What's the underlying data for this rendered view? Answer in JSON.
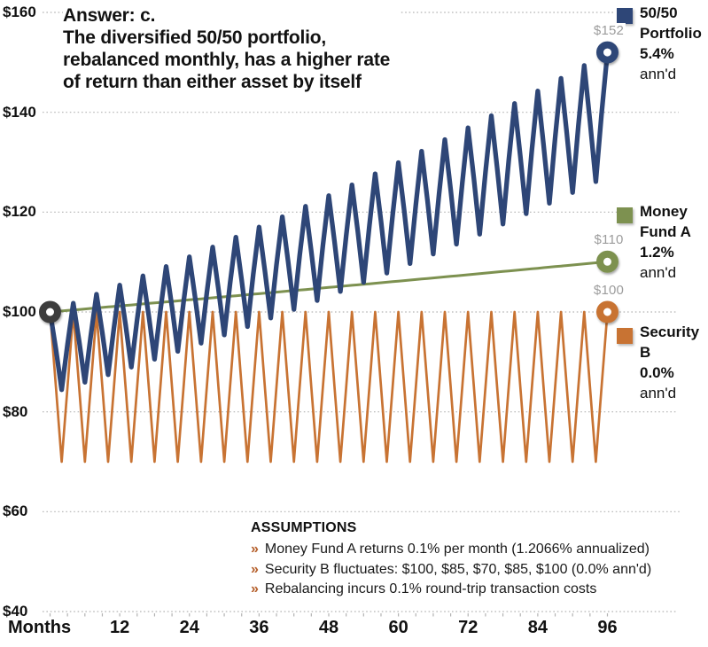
{
  "title": "Answer: c.\nThe diversified 50/50 portfolio,\nrebalanced monthly, has a higher rate\nof return than either asset by itself",
  "axes": {
    "x_title": "Months",
    "x_ticks": [
      12,
      24,
      36,
      48,
      60,
      72,
      84,
      96
    ],
    "y_ticks": [
      {
        "value": 160,
        "label": "$160"
      },
      {
        "value": 140,
        "label": "$140"
      },
      {
        "value": 120,
        "label": "$120"
      },
      {
        "value": 100,
        "label": "$100"
      },
      {
        "value": 80,
        "label": "$80"
      },
      {
        "value": 60,
        "label": "$60"
      },
      {
        "value": 40,
        "label": "$40"
      }
    ]
  },
  "chart_data": {
    "type": "line",
    "title": "Answer: c. The diversified 50/50 portfolio, rebalanced monthly, has a higher rate of return than either asset by itself",
    "xlabel": "Months",
    "x_range_months": [
      0,
      96
    ],
    "ylim": [
      40,
      160
    ],
    "grid": "horizontal dotted",
    "legend_position": "right",
    "start_marker": {
      "month": 0,
      "value": 100,
      "color": "#3C3C3C"
    },
    "series": [
      {
        "id": "fund_a",
        "name": "Money Fund A",
        "legend_label": "Money\nFund A",
        "legend_rate": "1.2%",
        "legend_suffix": "ann'd",
        "color": "#7D9150",
        "start_value": 100,
        "monthly_return_pct": 0.1,
        "end_value": 110,
        "end_label": "$110"
      },
      {
        "id": "security_b",
        "name": "Security B",
        "legend_label": "Security\nB",
        "legend_rate": "0.0%",
        "legend_suffix": "ann'd",
        "color": "#C87333",
        "start_value": 100,
        "repeating_pattern": [
          100,
          85,
          70,
          85
        ],
        "cycle_months": 4,
        "end_value": 100,
        "end_label": "$100"
      },
      {
        "id": "portfolio",
        "name": "50/50 Portfolio",
        "legend_label": "50/50\nPortfolio",
        "legend_rate": "5.4%",
        "legend_suffix": "ann'd",
        "color": "#2E4677",
        "start_value": 100,
        "cycle_months": 4,
        "cycle_relative_shape": [
          1,
          0.9255,
          0.8443,
          0.9352
        ],
        "end_value": 152,
        "end_label": "$152"
      }
    ]
  },
  "assumptions": {
    "heading": "ASSUMPTIONS",
    "bullet": "»",
    "bullet_color": "#B5602C",
    "items": [
      "Money Fund A returns 0.1% per month (1.2066% annualized)",
      "Security B fluctuates: $100, $85, $70, $85, $100 (0.0% ann'd)",
      "Rebalancing incurs 0.1% round-trip transaction costs"
    ]
  }
}
